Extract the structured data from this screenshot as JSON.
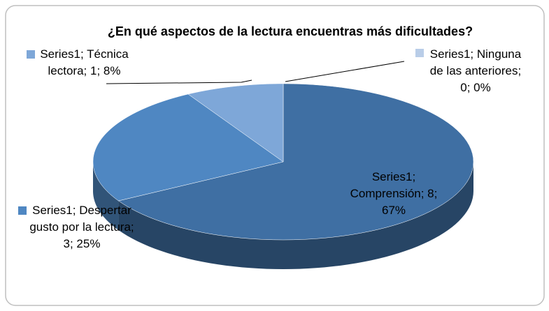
{
  "chart_data": {
    "type": "pie",
    "title": "¿En qué aspectos de la lectura encuentras más dificultades?",
    "series_name": "Series1",
    "categories": [
      "Comprensión",
      "Despertar gusto por la lectura",
      "Técnica lectora",
      "Ninguna de las anteriores"
    ],
    "values": [
      8,
      3,
      1,
      0
    ],
    "value_labels": [
      "Series1; Comprensión; 8; 67%",
      "Series1; Despertar gusto por la lectura; 3; 25%",
      "Series1; Técnica lectora; 1; 8%",
      "Series1; Ninguna de las anteriores; 0; 0%"
    ],
    "colors": [
      "#3f6fa3",
      "#4f87c2",
      "#7ea7d8",
      "#b9cde8"
    ]
  }
}
